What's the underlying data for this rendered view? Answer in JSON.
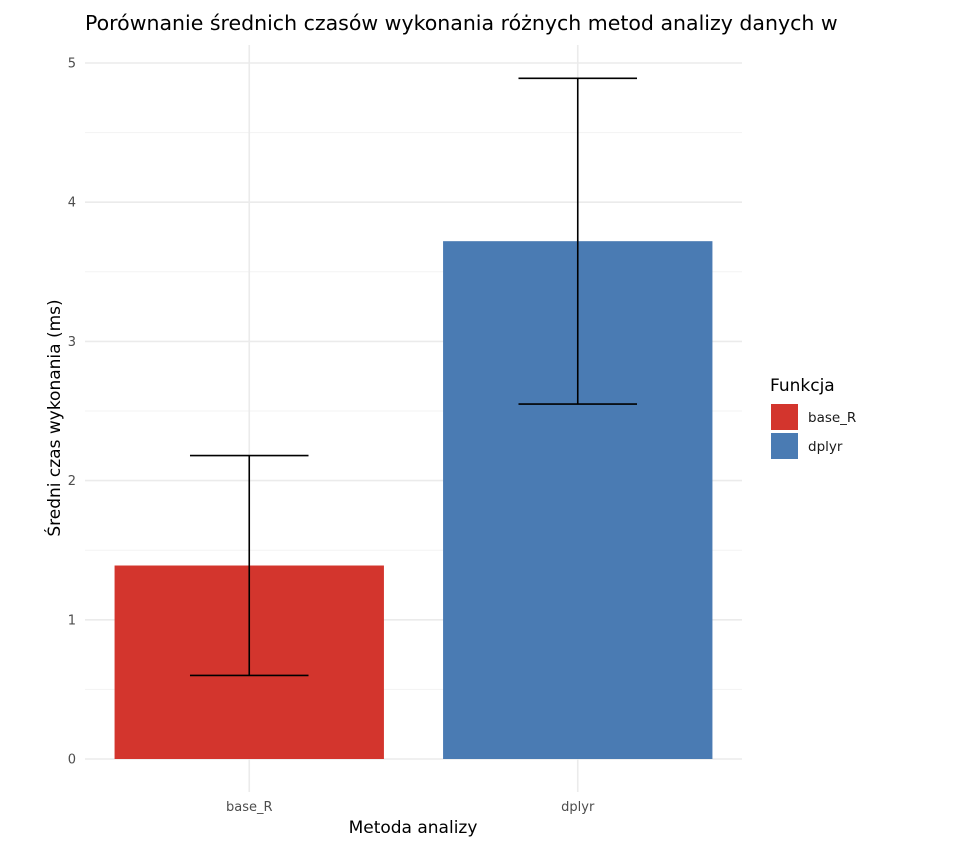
{
  "chart_data": {
    "type": "bar",
    "title": "Porównanie średnich czasów wykonania różnych metod analizy danych w",
    "xlabel": "Metoda analizy",
    "ylabel": "Średni czas wykonania (ms)",
    "categories": [
      "base_R",
      "dplyr"
    ],
    "values": [
      1.39,
      3.72
    ],
    "error_bars": [
      {
        "low": 0.6,
        "high": 2.18
      },
      {
        "low": 2.55,
        "high": 4.89
      }
    ],
    "colors": [
      "#D3352D",
      "#4A7BB3"
    ],
    "ylim": [
      -0.25,
      5.13
    ],
    "yticks": [
      0,
      1,
      2,
      3,
      4,
      5
    ],
    "grid": true,
    "legend": {
      "title": "Funkcja",
      "position": "right",
      "items": [
        "base_R",
        "dplyr"
      ]
    }
  }
}
